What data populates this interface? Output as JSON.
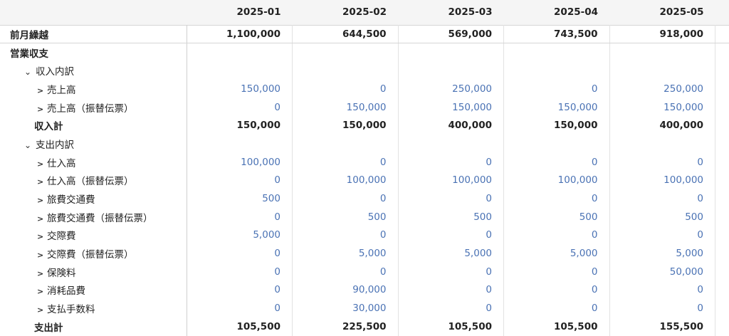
{
  "months": [
    "2025-01",
    "2025-02",
    "2025-03",
    "2025-04",
    "2025-05"
  ],
  "carry": {
    "label": "前月繰越",
    "values": [
      "1,100,000",
      "644,500",
      "569,000",
      "743,500",
      "918,000"
    ]
  },
  "section": {
    "label": "営業収支"
  },
  "income": {
    "label": "収入内訳",
    "items": [
      {
        "label": "売上高",
        "values": [
          "150,000",
          "0",
          "250,000",
          "0",
          "250,000"
        ]
      },
      {
        "label": "売上高（振替伝票）",
        "values": [
          "0",
          "150,000",
          "150,000",
          "150,000",
          "150,000"
        ]
      }
    ],
    "total": {
      "label": "収入計",
      "values": [
        "150,000",
        "150,000",
        "400,000",
        "150,000",
        "400,000"
      ]
    }
  },
  "expense": {
    "label": "支出内訳",
    "items": [
      {
        "label": "仕入高",
        "values": [
          "100,000",
          "0",
          "0",
          "0",
          "0"
        ]
      },
      {
        "label": "仕入高（振替伝票）",
        "values": [
          "0",
          "100,000",
          "100,000",
          "100,000",
          "100,000"
        ]
      },
      {
        "label": "旅費交通費",
        "values": [
          "500",
          "0",
          "0",
          "0",
          "0"
        ]
      },
      {
        "label": "旅費交通費（振替伝票）",
        "values": [
          "0",
          "500",
          "500",
          "500",
          "500"
        ]
      },
      {
        "label": "交際費",
        "values": [
          "5,000",
          "0",
          "0",
          "0",
          "0"
        ]
      },
      {
        "label": "交際費（振替伝票）",
        "values": [
          "0",
          "5,000",
          "5,000",
          "5,000",
          "5,000"
        ]
      },
      {
        "label": "保険料",
        "values": [
          "0",
          "0",
          "0",
          "0",
          "50,000"
        ]
      },
      {
        "label": "消耗品費",
        "values": [
          "0",
          "90,000",
          "0",
          "0",
          "0"
        ]
      },
      {
        "label": "支払手数料",
        "values": [
          "0",
          "30,000",
          "0",
          "0",
          "0"
        ]
      }
    ],
    "total": {
      "label": "支出計",
      "values": [
        "105,500",
        "225,500",
        "105,500",
        "105,500",
        "155,500"
      ]
    }
  }
}
